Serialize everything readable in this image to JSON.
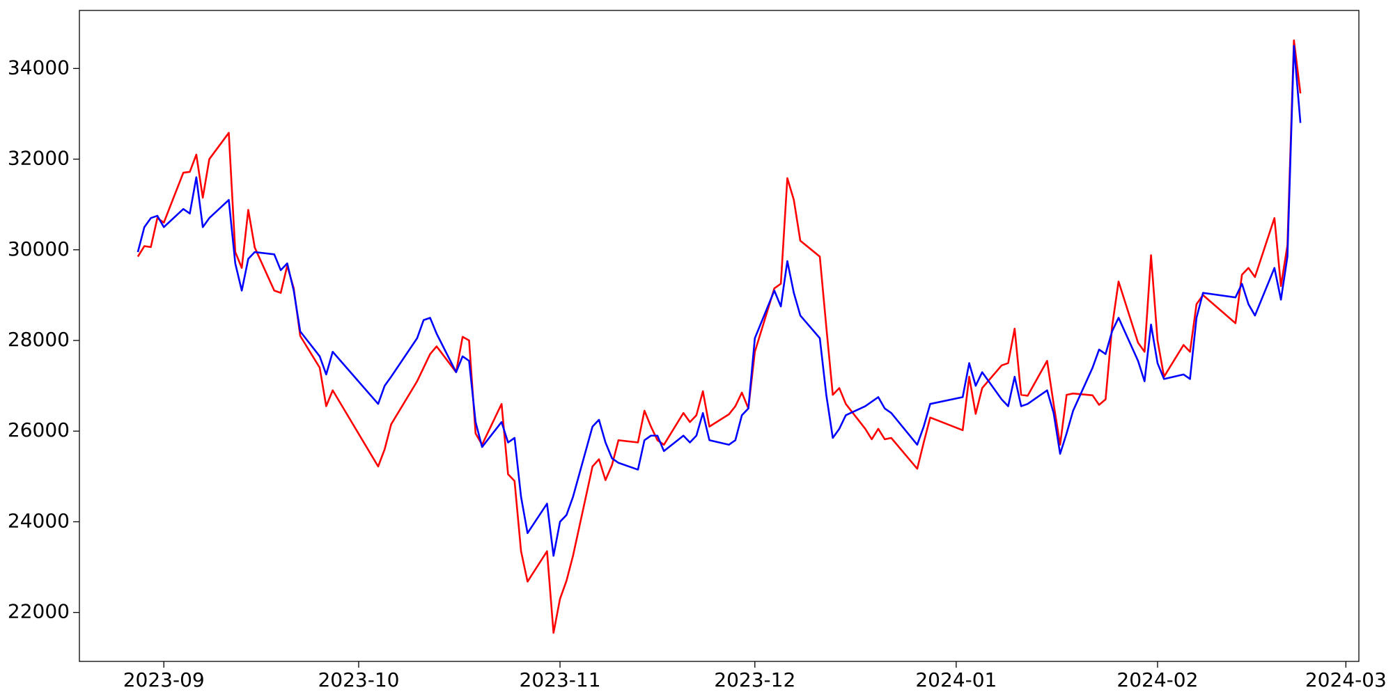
{
  "chart_data": {
    "type": "line",
    "x": [
      "2023-08-28",
      "2023-08-29",
      "2023-08-30",
      "2023-08-31",
      "2023-09-01",
      "2023-09-04",
      "2023-09-05",
      "2023-09-06",
      "2023-09-07",
      "2023-09-08",
      "2023-09-11",
      "2023-09-12",
      "2023-09-13",
      "2023-09-14",
      "2023-09-15",
      "2023-09-18",
      "2023-09-19",
      "2023-09-20",
      "2023-09-21",
      "2023-09-22",
      "2023-09-25",
      "2023-09-26",
      "2023-09-27",
      "2023-10-04",
      "2023-10-05",
      "2023-10-06",
      "2023-10-10",
      "2023-10-11",
      "2023-10-12",
      "2023-10-13",
      "2023-10-16",
      "2023-10-17",
      "2023-10-18",
      "2023-10-19",
      "2023-10-20",
      "2023-10-23",
      "2023-10-24",
      "2023-10-25",
      "2023-10-26",
      "2023-10-27",
      "2023-10-30",
      "2023-10-31",
      "2023-11-01",
      "2023-11-02",
      "2023-11-03",
      "2023-11-06",
      "2023-11-07",
      "2023-11-08",
      "2023-11-09",
      "2023-11-10",
      "2023-11-13",
      "2023-11-14",
      "2023-11-15",
      "2023-11-16",
      "2023-11-17",
      "2023-11-20",
      "2023-11-21",
      "2023-11-22",
      "2023-11-23",
      "2023-11-24",
      "2023-11-27",
      "2023-11-28",
      "2023-11-29",
      "2023-11-30",
      "2023-12-01",
      "2023-12-04",
      "2023-12-05",
      "2023-12-06",
      "2023-12-07",
      "2023-12-08",
      "2023-12-11",
      "2023-12-12",
      "2023-12-13",
      "2023-12-14",
      "2023-12-15",
      "2023-12-18",
      "2023-12-19",
      "2023-12-20",
      "2023-12-21",
      "2023-12-22",
      "2023-12-26",
      "2023-12-27",
      "2023-12-28",
      "2024-01-02",
      "2024-01-03",
      "2024-01-04",
      "2024-01-05",
      "2024-01-08",
      "2024-01-09",
      "2024-01-10",
      "2024-01-11",
      "2024-01-12",
      "2024-01-15",
      "2024-01-16",
      "2024-01-17",
      "2024-01-18",
      "2024-01-19",
      "2024-01-22",
      "2024-01-23",
      "2024-01-24",
      "2024-01-25",
      "2024-01-26",
      "2024-01-29",
      "2024-01-30",
      "2024-01-31",
      "2024-02-01",
      "2024-02-02",
      "2024-02-05",
      "2024-02-06",
      "2024-02-07",
      "2024-02-08",
      "2024-02-13",
      "2024-02-14",
      "2024-02-15",
      "2024-02-16",
      "2024-02-19",
      "2024-02-20",
      "2024-02-21",
      "2024-02-22",
      "2024-02-23"
    ],
    "series": [
      {
        "color": "#ff0000",
        "values": [
          29850,
          30080,
          30060,
          30700,
          30600,
          31700,
          31720,
          32100,
          31150,
          32000,
          32580,
          29950,
          29600,
          30880,
          30050,
          29100,
          29050,
          29650,
          29150,
          28100,
          27400,
          26550,
          26900,
          25220,
          25600,
          26150,
          27100,
          27400,
          27700,
          27870,
          27300,
          28080,
          28000,
          25950,
          25700,
          26600,
          25050,
          24900,
          23350,
          22680,
          23350,
          21550,
          22300,
          22700,
          23250,
          25220,
          25380,
          24920,
          25250,
          25800,
          25750,
          26450,
          26100,
          25800,
          25700,
          26400,
          26200,
          26350,
          26880,
          26100,
          26370,
          26550,
          26850,
          26500,
          27750,
          29150,
          29250,
          31580,
          31100,
          30200,
          29850,
          28300,
          26800,
          26950,
          26600,
          26050,
          25820,
          26050,
          25820,
          25850,
          25170,
          25750,
          26300,
          26020,
          27200,
          26380,
          26950,
          27450,
          27500,
          28260,
          26800,
          26780,
          27550,
          26600,
          25700,
          26800,
          26830,
          26790,
          26580,
          26700,
          28300,
          29300,
          27950,
          27750,
          29880,
          28000,
          27200,
          27900,
          27750,
          28800,
          29000,
          28380,
          29450,
          29600,
          29400,
          30700,
          29200,
          30100,
          34620,
          33450
        ]
      },
      {
        "color": "#0000ff",
        "values": [
          29950,
          30500,
          30700,
          30750,
          30500,
          30900,
          30800,
          31600,
          30500,
          30700,
          31100,
          29700,
          29100,
          29800,
          29950,
          29900,
          29550,
          29700,
          29100,
          28200,
          27650,
          27250,
          27750,
          26600,
          27000,
          27200,
          28050,
          28450,
          28500,
          28150,
          27300,
          27650,
          27550,
          26200,
          25650,
          26200,
          25750,
          25850,
          24550,
          23750,
          24400,
          23250,
          24000,
          24150,
          24550,
          26100,
          26250,
          25750,
          25400,
          25300,
          25150,
          25800,
          25900,
          25900,
          25560,
          25900,
          25750,
          25900,
          26400,
          25800,
          25700,
          25800,
          26350,
          26500,
          28050,
          29100,
          28750,
          29750,
          29050,
          28550,
          28050,
          26800,
          25850,
          26050,
          26350,
          26550,
          26650,
          26750,
          26500,
          26400,
          25700,
          26100,
          26600,
          26750,
          27500,
          27000,
          27300,
          26700,
          26550,
          27200,
          26550,
          26600,
          26900,
          26400,
          25500,
          25950,
          26450,
          27400,
          27800,
          27700,
          28200,
          28500,
          27550,
          27100,
          28350,
          27500,
          27150,
          27250,
          27150,
          28500,
          29050,
          28950,
          29250,
          28800,
          28550,
          29600,
          28900,
          29850,
          34500,
          32800
        ]
      }
    ],
    "xlim": [
      "2023-08-19",
      "2024-03-03"
    ],
    "xticks": [
      {
        "value": "2023-09-01",
        "label": "2023-09"
      },
      {
        "value": "2023-10-01",
        "label": "2023-10"
      },
      {
        "value": "2023-11-01",
        "label": "2023-11"
      },
      {
        "value": "2023-12-01",
        "label": "2023-12"
      },
      {
        "value": "2024-01-01",
        "label": "2024-01"
      },
      {
        "value": "2024-02-01",
        "label": "2024-02"
      },
      {
        "value": "2024-03-01",
        "label": "2024-03"
      }
    ],
    "ylim": [
      20920,
      35280
    ],
    "yticks": [
      22000,
      24000,
      26000,
      28000,
      30000,
      32000,
      34000
    ],
    "grid": false
  }
}
